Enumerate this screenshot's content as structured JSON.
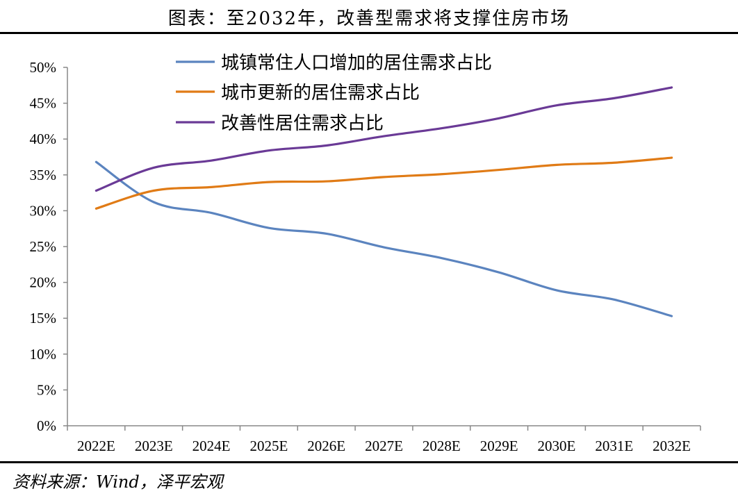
{
  "title": "图表：至2032年，改善型需求将支撑住房市场",
  "source": "资料来源：Wind，泽平宏观",
  "chart_data": {
    "type": "line",
    "title": "图表：至2032年，改善型需求将支撑住房市场",
    "xlabel": "",
    "ylabel": "",
    "categories": [
      "2022E",
      "2023E",
      "2024E",
      "2025E",
      "2026E",
      "2027E",
      "2028E",
      "2029E",
      "2030E",
      "2031E",
      "2032E"
    ],
    "y_ticks": [
      "0%",
      "5%",
      "10%",
      "15%",
      "20%",
      "25%",
      "30%",
      "35%",
      "40%",
      "45%",
      "50%"
    ],
    "ylim": [
      0,
      50
    ],
    "grid": false,
    "legend_position": "top",
    "series": [
      {
        "name": "城镇常住人口增加的居住需求占比",
        "color": "#5b84bf",
        "values": [
          36.8,
          31.2,
          29.7,
          27.6,
          26.8,
          24.9,
          23.4,
          21.4,
          18.9,
          17.6,
          15.3
        ]
      },
      {
        "name": "城市更新的居住需求占比",
        "color": "#e07b16",
        "values": [
          30.3,
          32.8,
          33.3,
          34.0,
          34.1,
          34.7,
          35.1,
          35.7,
          36.4,
          36.7,
          37.4
        ]
      },
      {
        "name": "改善性居住需求占比",
        "color": "#6a3a96",
        "values": [
          32.8,
          36.0,
          37.0,
          38.4,
          39.1,
          40.4,
          41.5,
          42.9,
          44.7,
          45.7,
          47.2
        ]
      }
    ]
  }
}
